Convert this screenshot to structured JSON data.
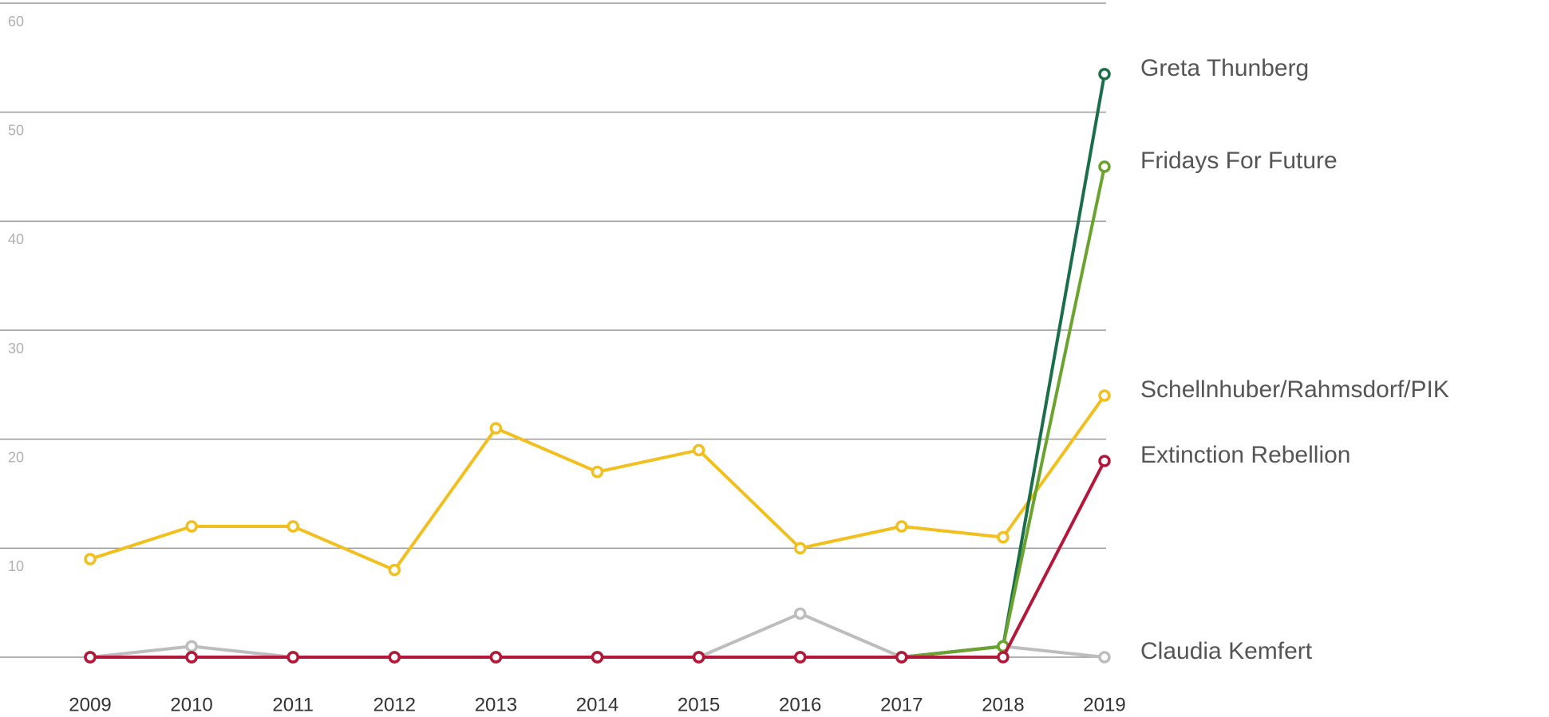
{
  "chart_data": {
    "type": "line",
    "categories": [
      "2009",
      "2010",
      "2011",
      "2012",
      "2013",
      "2014",
      "2015",
      "2016",
      "2017",
      "2018",
      "2019"
    ],
    "series": [
      {
        "name": "Claudia Kemfert",
        "color": "#bdbdbd",
        "values": [
          0,
          1,
          0,
          0,
          0,
          0,
          0,
          4,
          0,
          1,
          0
        ]
      },
      {
        "name": "Schellnhuber/Rahmsdorf/PIK",
        "color": "#f2c01e",
        "values": [
          9,
          12,
          12,
          8,
          21,
          17,
          19,
          10,
          12,
          11,
          24
        ]
      },
      {
        "name": "Greta Thunberg",
        "color": "#1b6e4a",
        "values": [
          0,
          0,
          0,
          0,
          0,
          0,
          0,
          0,
          0,
          1,
          53.5
        ]
      },
      {
        "name": "Fridays For Future",
        "color": "#6aa32e",
        "values": [
          0,
          0,
          0,
          0,
          0,
          0,
          0,
          0,
          0,
          1,
          45
        ]
      },
      {
        "name": "Extinction Rebellion",
        "color": "#b5173a",
        "values": [
          0,
          0,
          0,
          0,
          0,
          0,
          0,
          0,
          0,
          0,
          18
        ]
      }
    ],
    "ylim": [
      0,
      60
    ],
    "yticks": [
      10,
      20,
      30,
      40,
      50,
      60
    ],
    "grid": true
  }
}
